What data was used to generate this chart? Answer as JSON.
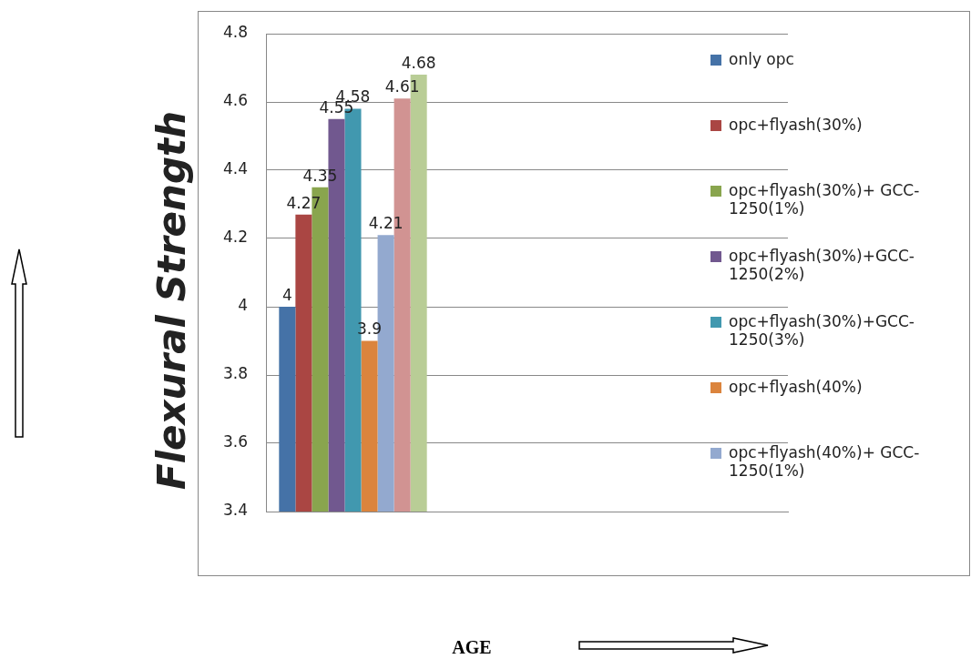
{
  "chart_data": {
    "type": "bar",
    "ylabel": "Flexural Strength",
    "annotations": [
      "AGE"
    ],
    "categories": [
      null,
      null,
      null
    ],
    "ylim": [
      3.4,
      4.8
    ],
    "yticks": [
      3.4,
      3.6,
      3.8,
      4,
      4.2,
      4.4,
      4.6,
      4.8
    ],
    "grid": "y",
    "legend": "right",
    "data_labels": true,
    "series": [
      {
        "name": "only  opc",
        "color": "#4572a7",
        "values": [
          4,
          null,
          null
        ]
      },
      {
        "name": "opc+flyash(30%)",
        "color": "#aa4643",
        "values": [
          4.27,
          null,
          null
        ]
      },
      {
        "name": "opc+flyash(30%)+ GCC-1250(1%)",
        "color": "#89a54e",
        "values": [
          4.35,
          null,
          null
        ]
      },
      {
        "name": "opc+flyash(30%)+GCC-1250(2%)",
        "color": "#71588f",
        "values": [
          4.55,
          null,
          null
        ]
      },
      {
        "name": "opc+flyash(30%)+GCC-1250(3%)",
        "color": "#4198af",
        "values": [
          4.58,
          null,
          null
        ]
      },
      {
        "name": "opc+flyash(40%)",
        "color": "#db843d",
        "values": [
          3.9,
          null,
          null
        ]
      },
      {
        "name": "opc+flyash(40%)+ GCC-1250(1%)",
        "color": "#93a9cf",
        "values": [
          4.21,
          null,
          null
        ]
      },
      {
        "color": "#d19392",
        "values": [
          4.61,
          null,
          null
        ]
      },
      {
        "color": "#b9cd96",
        "values": [
          4.68,
          null,
          null
        ]
      }
    ]
  }
}
